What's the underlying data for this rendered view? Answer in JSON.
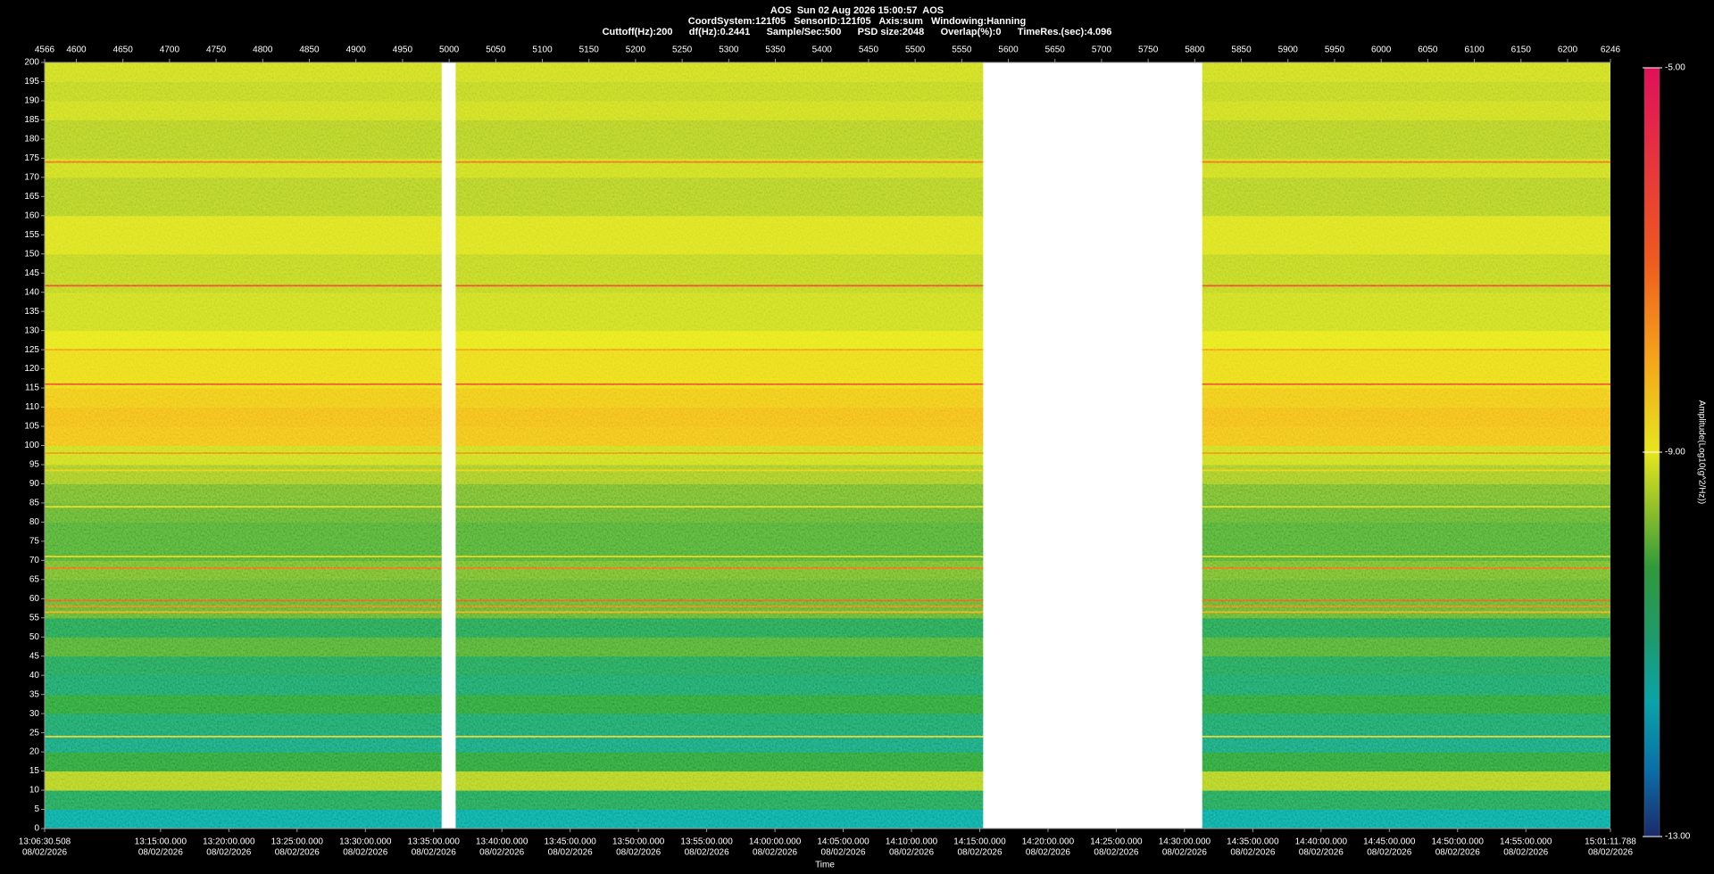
{
  "chart_data": {
    "type": "spectrogram",
    "title_lines": [
      "AOS  Sun 02 Aug 2026 15:00:57  AOS",
      "CoordSystem:121f05   SensorID:121f05   Axis:sum   Windowing:Hanning",
      "Cuttoff(Hz):200      df(Hz):0.2441      Sample/Sec:500      PSD size:2048      Overlap(%):0      TimeRes.(sec):4.096"
    ],
    "xlim": [
      4566,
      6246
    ],
    "xticks": [
      4566,
      4600,
      4650,
      4700,
      4750,
      4800,
      4850,
      4900,
      4950,
      5000,
      5050,
      5100,
      5150,
      5200,
      5250,
      5300,
      5350,
      5400,
      5450,
      5500,
      5550,
      5600,
      5650,
      5700,
      5750,
      5800,
      5850,
      5900,
      5950,
      6000,
      6050,
      6100,
      6150,
      6200,
      6246
    ],
    "x2lim": [
      47190.508,
      54071.788
    ],
    "x2ticks": [
      {
        "value": 47190.508,
        "label": "13:06:30.508",
        "date": "08/02/2026"
      },
      {
        "value": 47700,
        "label": "13:15:00.000",
        "date": "08/02/2026"
      },
      {
        "value": 48000,
        "label": "13:20:00.000",
        "date": "08/02/2026"
      },
      {
        "value": 48300,
        "label": "13:25:00.000",
        "date": "08/02/2026"
      },
      {
        "value": 48600,
        "label": "13:30:00.000",
        "date": "08/02/2026"
      },
      {
        "value": 48900,
        "label": "13:35:00.000",
        "date": "08/02/2026"
      },
      {
        "value": 49200,
        "label": "13:40:00.000",
        "date": "08/02/2026"
      },
      {
        "value": 49500,
        "label": "13:45:00.000",
        "date": "08/02/2026"
      },
      {
        "value": 49800,
        "label": "13:50:00.000",
        "date": "08/02/2026"
      },
      {
        "value": 50100,
        "label": "13:55:00.000",
        "date": "08/02/2026"
      },
      {
        "value": 50400,
        "label": "14:00:00.000",
        "date": "08/02/2026"
      },
      {
        "value": 50700,
        "label": "14:05:00.000",
        "date": "08/02/2026"
      },
      {
        "value": 51000,
        "label": "14:10:00.000",
        "date": "08/02/2026"
      },
      {
        "value": 51300,
        "label": "14:15:00.000",
        "date": "08/02/2026"
      },
      {
        "value": 51600,
        "label": "14:20:00.000",
        "date": "08/02/2026"
      },
      {
        "value": 51900,
        "label": "14:25:00.000",
        "date": "08/02/2026"
      },
      {
        "value": 52200,
        "label": "14:30:00.000",
        "date": "08/02/2026"
      },
      {
        "value": 52500,
        "label": "14:35:00.000",
        "date": "08/02/2026"
      },
      {
        "value": 52800,
        "label": "14:40:00.000",
        "date": "08/02/2026"
      },
      {
        "value": 53100,
        "label": "14:45:00.000",
        "date": "08/02/2026"
      },
      {
        "value": 53400,
        "label": "14:50:00.000",
        "date": "08/02/2026"
      },
      {
        "value": 53700,
        "label": "14:55:00.000",
        "date": "08/02/2026"
      },
      {
        "value": 54071.788,
        "label": "15:01:11.788",
        "date": "08/02/2026"
      }
    ],
    "xlabel": "Time",
    "ylim": [
      0,
      200
    ],
    "yticks": [
      0,
      5,
      10,
      15,
      20,
      25,
      30,
      35,
      40,
      45,
      50,
      55,
      60,
      65,
      70,
      75,
      80,
      85,
      90,
      95,
      100,
      105,
      110,
      115,
      120,
      125,
      130,
      135,
      140,
      145,
      150,
      155,
      160,
      165,
      170,
      175,
      180,
      185,
      190,
      195,
      200
    ],
    "segments": [
      [
        4566,
        4992
      ],
      [
        5007,
        5573
      ],
      [
        5808,
        6246
      ]
    ],
    "bins": [
      0,
      5,
      10,
      15,
      20,
      25,
      30,
      35,
      40,
      45,
      50,
      55,
      60,
      65,
      70,
      75,
      80,
      85,
      90,
      95,
      100,
      105,
      110,
      115,
      120,
      125,
      130,
      135,
      140,
      145,
      150,
      155,
      160,
      165,
      170,
      175,
      180,
      185,
      190,
      195,
      200
    ],
    "amplitude": [
      -11.4,
      -10.6,
      -9.4,
      -10.2,
      -11.0,
      -10.8,
      -10.2,
      -10.8,
      -10.6,
      -10.0,
      -10.5,
      -9.9,
      -9.9,
      -9.8,
      -10.0,
      -10.0,
      -9.9,
      -9.8,
      -9.5,
      -9.2,
      -8.4,
      -8.3,
      -8.5,
      -8.8,
      -8.8,
      -9.0,
      -9.2,
      -9.2,
      -9.3,
      -9.3,
      -9.1,
      -9.1,
      -9.4,
      -9.4,
      -9.2,
      -9.4,
      -9.4,
      -9.2,
      -9.3,
      -9.2
    ],
    "lines": {
      "freq": [
        174,
        141.7,
        125,
        116,
        98,
        93.5,
        84,
        71,
        68,
        59.5,
        58,
        56.5,
        24
      ],
      "amplitude": [
        -7.2,
        -6.5,
        -7.8,
        -6.5,
        -7.6,
        -8.6,
        -8.8,
        -8.6,
        -7.2,
        -7.0,
        -7.4,
        -8.0,
        -8.6
      ]
    },
    "colorbar": {
      "label": "Amplitude(Log10(g^2/Hz))",
      "lim": [
        -13,
        -5
      ],
      "ticks": [
        {
          "value": -5,
          "label": "-5.00"
        },
        {
          "value": -9,
          "label": "-9.00"
        },
        {
          "value": -13,
          "label": "-13.00"
        }
      ],
      "stops": {
        "values": [
          -13,
          -12.3,
          -11.6,
          -10.9,
          -10.2,
          -9.6,
          -9,
          -8,
          -7,
          -5
        ],
        "colors": [
          "#1b2a6b",
          "#0a6fa8",
          "#0aa3a8",
          "#1f9a6a",
          "#2f9a3a",
          "#8fbf2a",
          "#e6e61e",
          "#f5a21a",
          "#ee5a1e",
          "#e0105a"
        ]
      }
    }
  }
}
